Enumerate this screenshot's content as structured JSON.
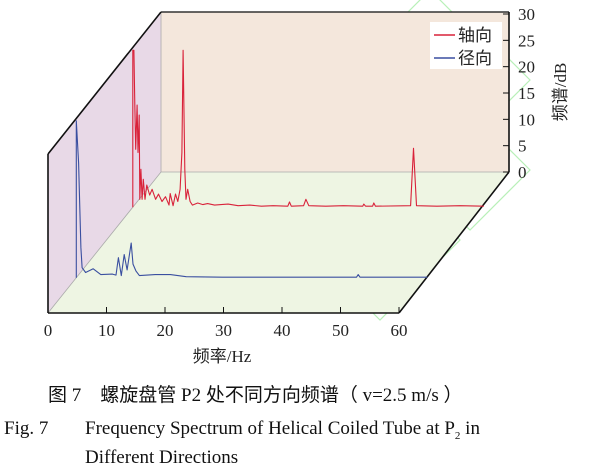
{
  "figure": {
    "caption_cn_label": "图 7",
    "caption_cn_text": "螺旋盘管 P2 处不同方向频谱（ v=2.5 m/s ）",
    "caption_en_label": "Fig. 7",
    "caption_en_text_line1": "Frequency Spectrum of Helical Coiled Tube at P",
    "caption_en_subscript": "2",
    "caption_en_text_line1_end": " in",
    "caption_en_text_line2": "Different Directions"
  },
  "chart_data": {
    "type": "line",
    "style": "3d-waterfall",
    "xlabel": "频率/Hz",
    "ylabel": "频谱/dB",
    "xlim": [
      0,
      60
    ],
    "ylim": [
      0,
      30
    ],
    "x_ticks": [
      "0",
      "10",
      "20",
      "30",
      "40",
      "50",
      "60"
    ],
    "y_ticks": [
      "0",
      "5",
      "10",
      "15",
      "20",
      "25",
      "30"
    ],
    "legend_placement": "top-right",
    "colors": {
      "back_wall": "#f4e7dc",
      "side_wall": "#e8d9e7",
      "floor": "#eef5e3",
      "watermark": "#b8f0b8"
    },
    "series": [
      {
        "name": "轴向",
        "color": "#d9223a",
        "points": [
          [
            0,
            0
          ],
          [
            0,
            29.8
          ],
          [
            0.2,
            29.8
          ],
          [
            0.35,
            19.5
          ],
          [
            0.5,
            11
          ],
          [
            0.75,
            19.4
          ],
          [
            0.9,
            10.4
          ],
          [
            1.1,
            17.5
          ],
          [
            1.2,
            1.5
          ],
          [
            1.4,
            7.2
          ],
          [
            1.6,
            1.5
          ],
          [
            1.8,
            5.3
          ],
          [
            2.1,
            1.5
          ],
          [
            2.4,
            4.2
          ],
          [
            2.9,
            2.3
          ],
          [
            3.3,
            3.4
          ],
          [
            3.9,
            1.5
          ],
          [
            4.4,
            2.5
          ],
          [
            5.0,
            1.1
          ],
          [
            5.6,
            2.0
          ],
          [
            6.2,
            0.4
          ],
          [
            6.4,
            2.6
          ],
          [
            6.9,
            0.3
          ],
          [
            7.3,
            2.5
          ],
          [
            7.7,
            1.1
          ],
          [
            8.1,
            3.4
          ],
          [
            8.4,
            10.4
          ],
          [
            8.6,
            29.8
          ],
          [
            8.9,
            7.2
          ],
          [
            9.1,
            1.5
          ],
          [
            9.4,
            3.4
          ],
          [
            9.8,
            1.1
          ],
          [
            10.2,
            0.4
          ],
          [
            11.1,
            0.8
          ],
          [
            12,
            0.5
          ],
          [
            12.8,
            0.7
          ],
          [
            14,
            0.4
          ],
          [
            15.1,
            0.5
          ],
          [
            16.3,
            0.6
          ],
          [
            18,
            0.3
          ],
          [
            20,
            0.4
          ],
          [
            22,
            0.2
          ],
          [
            24,
            0.3
          ],
          [
            26.5,
            0.2
          ],
          [
            26.8,
            1.0
          ],
          [
            27.1,
            0.2
          ],
          [
            29.2,
            0.3
          ],
          [
            29.6,
            1.5
          ],
          [
            30.1,
            0.3
          ],
          [
            33,
            0.2
          ],
          [
            36,
            0.3
          ],
          [
            39.3,
            0.2
          ],
          [
            39.5,
            0.6
          ],
          [
            39.8,
            0.2
          ],
          [
            41.0,
            0.2
          ],
          [
            41.2,
            0.8
          ],
          [
            41.5,
            0.2
          ],
          [
            47.5,
            0.3
          ],
          [
            48,
            11.2
          ],
          [
            48.5,
            0.3
          ],
          [
            52,
            0.2
          ],
          [
            56,
            0.3
          ],
          [
            60,
            0.2
          ]
        ]
      },
      {
        "name": "径向",
        "color": "#3a4fa0",
        "points": [
          [
            0,
            0
          ],
          [
            0,
            29.8
          ],
          [
            0.4,
            21.8
          ],
          [
            0.6,
            13.3
          ],
          [
            0.8,
            5.7
          ],
          [
            1.0,
            1.9
          ],
          [
            1.6,
            1.0
          ],
          [
            2.9,
            1.7
          ],
          [
            4.2,
            0.6
          ],
          [
            6.2,
            0.7
          ],
          [
            6.8,
            0.5
          ],
          [
            7.2,
            3.8
          ],
          [
            7.7,
            0.4
          ],
          [
            8.2,
            4.4
          ],
          [
            8.7,
            1.5
          ],
          [
            9.4,
            6.6
          ],
          [
            9.7,
            2.6
          ],
          [
            10.2,
            1.3
          ],
          [
            10.8,
            0.4
          ],
          [
            13.5,
            0.6
          ],
          [
            16.1,
            0.6
          ],
          [
            18.8,
            0.2
          ],
          [
            25,
            0.1
          ],
          [
            35,
            0.1
          ],
          [
            47.9,
            0.1
          ],
          [
            48.2,
            0.6
          ],
          [
            48.5,
            0.1
          ],
          [
            60,
            0.1
          ]
        ]
      }
    ]
  }
}
